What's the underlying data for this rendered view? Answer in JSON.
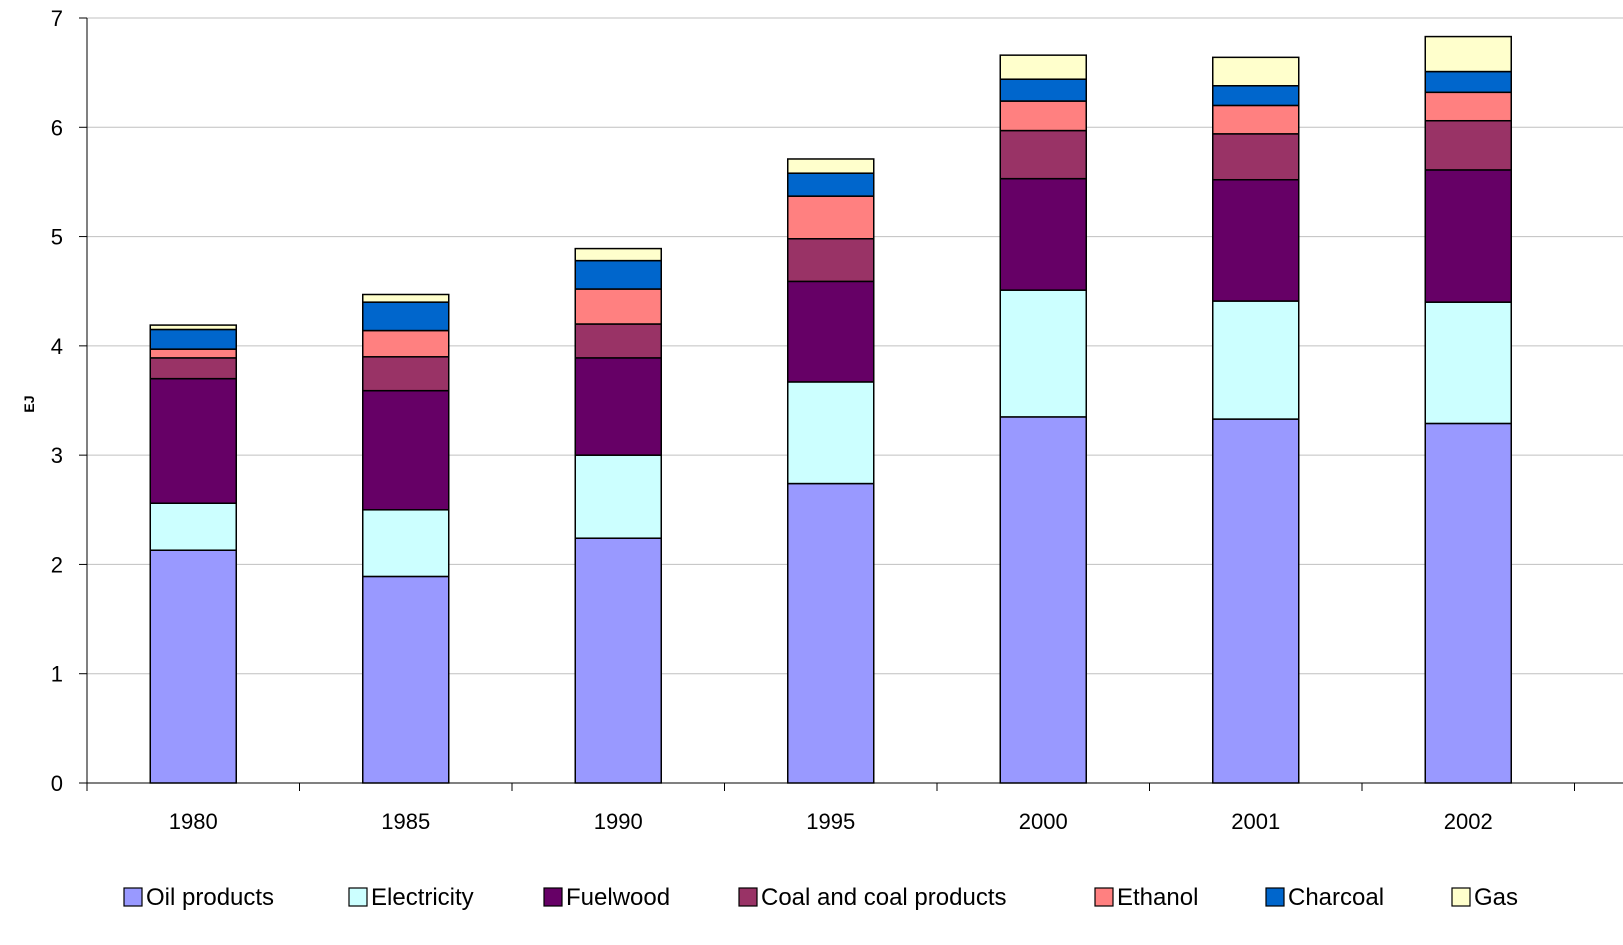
{
  "chart_data": {
    "type": "bar",
    "stacked": true,
    "title": "",
    "xlabel": "",
    "ylabel": "EJ",
    "ylim": [
      0,
      7
    ],
    "yticks": [
      0,
      1,
      2,
      3,
      4,
      5,
      6,
      7
    ],
    "grid": true,
    "legend_position": "bottom",
    "categories": [
      "1980",
      "1985",
      "1990",
      "1995",
      "2000",
      "2001",
      "2002"
    ],
    "series": [
      {
        "name": "Oil products",
        "color": "#9999FF",
        "values": [
          2.13,
          1.89,
          2.24,
          2.74,
          3.35,
          3.33,
          3.29
        ]
      },
      {
        "name": "Electricity",
        "color": "#CCFFFF",
        "values": [
          0.43,
          0.61,
          0.76,
          0.93,
          1.16,
          1.08,
          1.11
        ]
      },
      {
        "name": "Fuelwood",
        "color": "#660066",
        "values": [
          1.14,
          1.09,
          0.89,
          0.92,
          1.02,
          1.11,
          1.21
        ]
      },
      {
        "name": "Coal and coal products",
        "color": "#993366",
        "values": [
          0.19,
          0.31,
          0.31,
          0.39,
          0.44,
          0.42,
          0.45
        ]
      },
      {
        "name": "Ethanol",
        "color": "#FF8080",
        "values": [
          0.08,
          0.24,
          0.32,
          0.39,
          0.27,
          0.26,
          0.26
        ]
      },
      {
        "name": "Charcoal",
        "color": "#0066CC",
        "values": [
          0.18,
          0.26,
          0.26,
          0.21,
          0.2,
          0.18,
          0.19
        ]
      },
      {
        "name": "Gas",
        "color": "#FFFFCC",
        "values": [
          0.04,
          0.07,
          0.11,
          0.13,
          0.22,
          0.26,
          0.32
        ]
      }
    ]
  }
}
